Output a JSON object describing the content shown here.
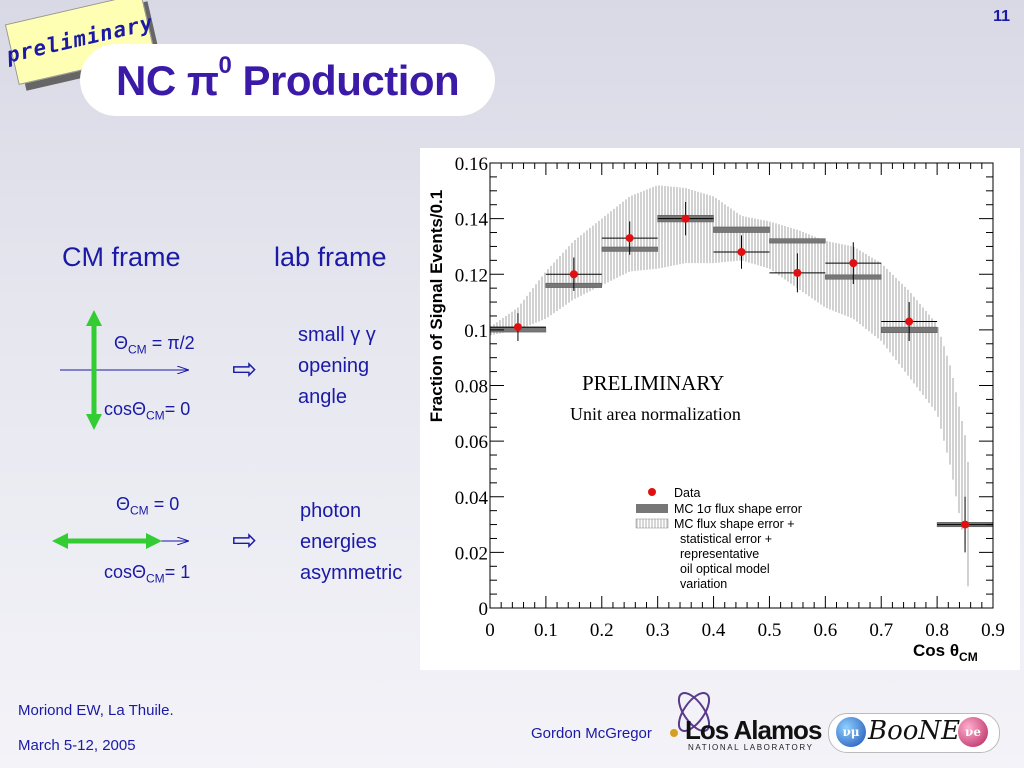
{
  "page_number": "11",
  "sticky_note": "preliminary",
  "title": {
    "main": "NC π",
    "sup": "0",
    "tail": " Production"
  },
  "frames": {
    "cm": "CM frame",
    "lab": "lab frame"
  },
  "case1": {
    "theta_sym": "Θ",
    "theta_sub": "CM",
    "theta_val": " = π/2",
    "cos_sym": "cosΘ",
    "cos_sub": "CM",
    "cos_val": "= 0",
    "desc": [
      "small γ γ",
      "opening",
      "angle"
    ]
  },
  "case2": {
    "theta_sym": "Θ",
    "theta_sub": "CM",
    "theta_val": " = 0",
    "cos_sym": "cosΘ",
    "cos_sub": "CM",
    "cos_val": "= 1",
    "desc": [
      "photon",
      "energies",
      "asymmetric"
    ]
  },
  "implies_icon": "⇨",
  "footer": {
    "conference": "Moriond EW, La Thuile.",
    "date": "March 5-12, 2005",
    "author": "Gordon McGregor",
    "lab_name": "Los Alamos",
    "lab_sub": "NATIONAL LABORATORY",
    "experiment": "BooNE",
    "ball_left": "νμ",
    "ball_right": "νe"
  },
  "chart_data": {
    "type": "scatter",
    "xlabel": "Cos θ",
    "xlabel_sub": "CM",
    "ylabel": "Fraction of Signal Events/0.1",
    "xlim": [
      0,
      0.9
    ],
    "ylim": [
      0,
      0.16
    ],
    "xticks": [
      "0",
      "0.1",
      "0.2",
      "0.3",
      "0.4",
      "0.5",
      "0.6",
      "0.7",
      "0.8",
      "0.9"
    ],
    "yticks": [
      "0",
      "0.02",
      "0.04",
      "0.06",
      "0.08",
      "0.1",
      "0.12",
      "0.14",
      "0.16"
    ],
    "annotation_title": "PRELIMINARY",
    "annotation_sub": "Unit area normalization",
    "legend": [
      "Data",
      "MC 1σ flux shape error",
      "MC flux shape error +",
      "statistical error +",
      "representative",
      "oil optical model",
      "variation"
    ],
    "bins_x": [
      0.05,
      0.15,
      0.25,
      0.35,
      0.45,
      0.55,
      0.65,
      0.75,
      0.85
    ],
    "data": {
      "y": [
        0.101,
        0.12,
        0.133,
        0.14,
        0.128,
        0.1205,
        0.124,
        0.103,
        0.03
      ],
      "err": [
        0.005,
        0.006,
        0.006,
        0.006,
        0.006,
        0.007,
        0.0075,
        0.007,
        0.01
      ]
    },
    "mc_flux_band": {
      "center": [
        0.1,
        0.116,
        0.129,
        0.14,
        0.136,
        0.132,
        0.119,
        0.1,
        0.03
      ],
      "halfwidth": [
        0.0008,
        0.0008,
        0.0008,
        0.0012,
        0.001,
        0.0008,
        0.0008,
        0.001,
        0.0008
      ]
    },
    "mc_total_band_lower": [
      0.098,
      0.1,
      0.104,
      0.111,
      0.116,
      0.121,
      0.122,
      0.124,
      0.124,
      0.125,
      0.122,
      0.115,
      0.108,
      0.104,
      0.096,
      0.083,
      0.07,
      0.05,
      0.022,
      -0.005
    ],
    "mc_total_band_upper": [
      0.101,
      0.108,
      0.121,
      0.132,
      0.14,
      0.148,
      0.152,
      0.151,
      0.148,
      0.141,
      0.139,
      0.136,
      0.132,
      0.13,
      0.124,
      0.114,
      0.102,
      0.086,
      0.062,
      0.044
    ],
    "mc_total_band_x": [
      0.0,
      0.05,
      0.1,
      0.15,
      0.2,
      0.25,
      0.3,
      0.35,
      0.4,
      0.45,
      0.5,
      0.55,
      0.6,
      0.65,
      0.7,
      0.75,
      0.8,
      0.825,
      0.85,
      0.86
    ]
  }
}
